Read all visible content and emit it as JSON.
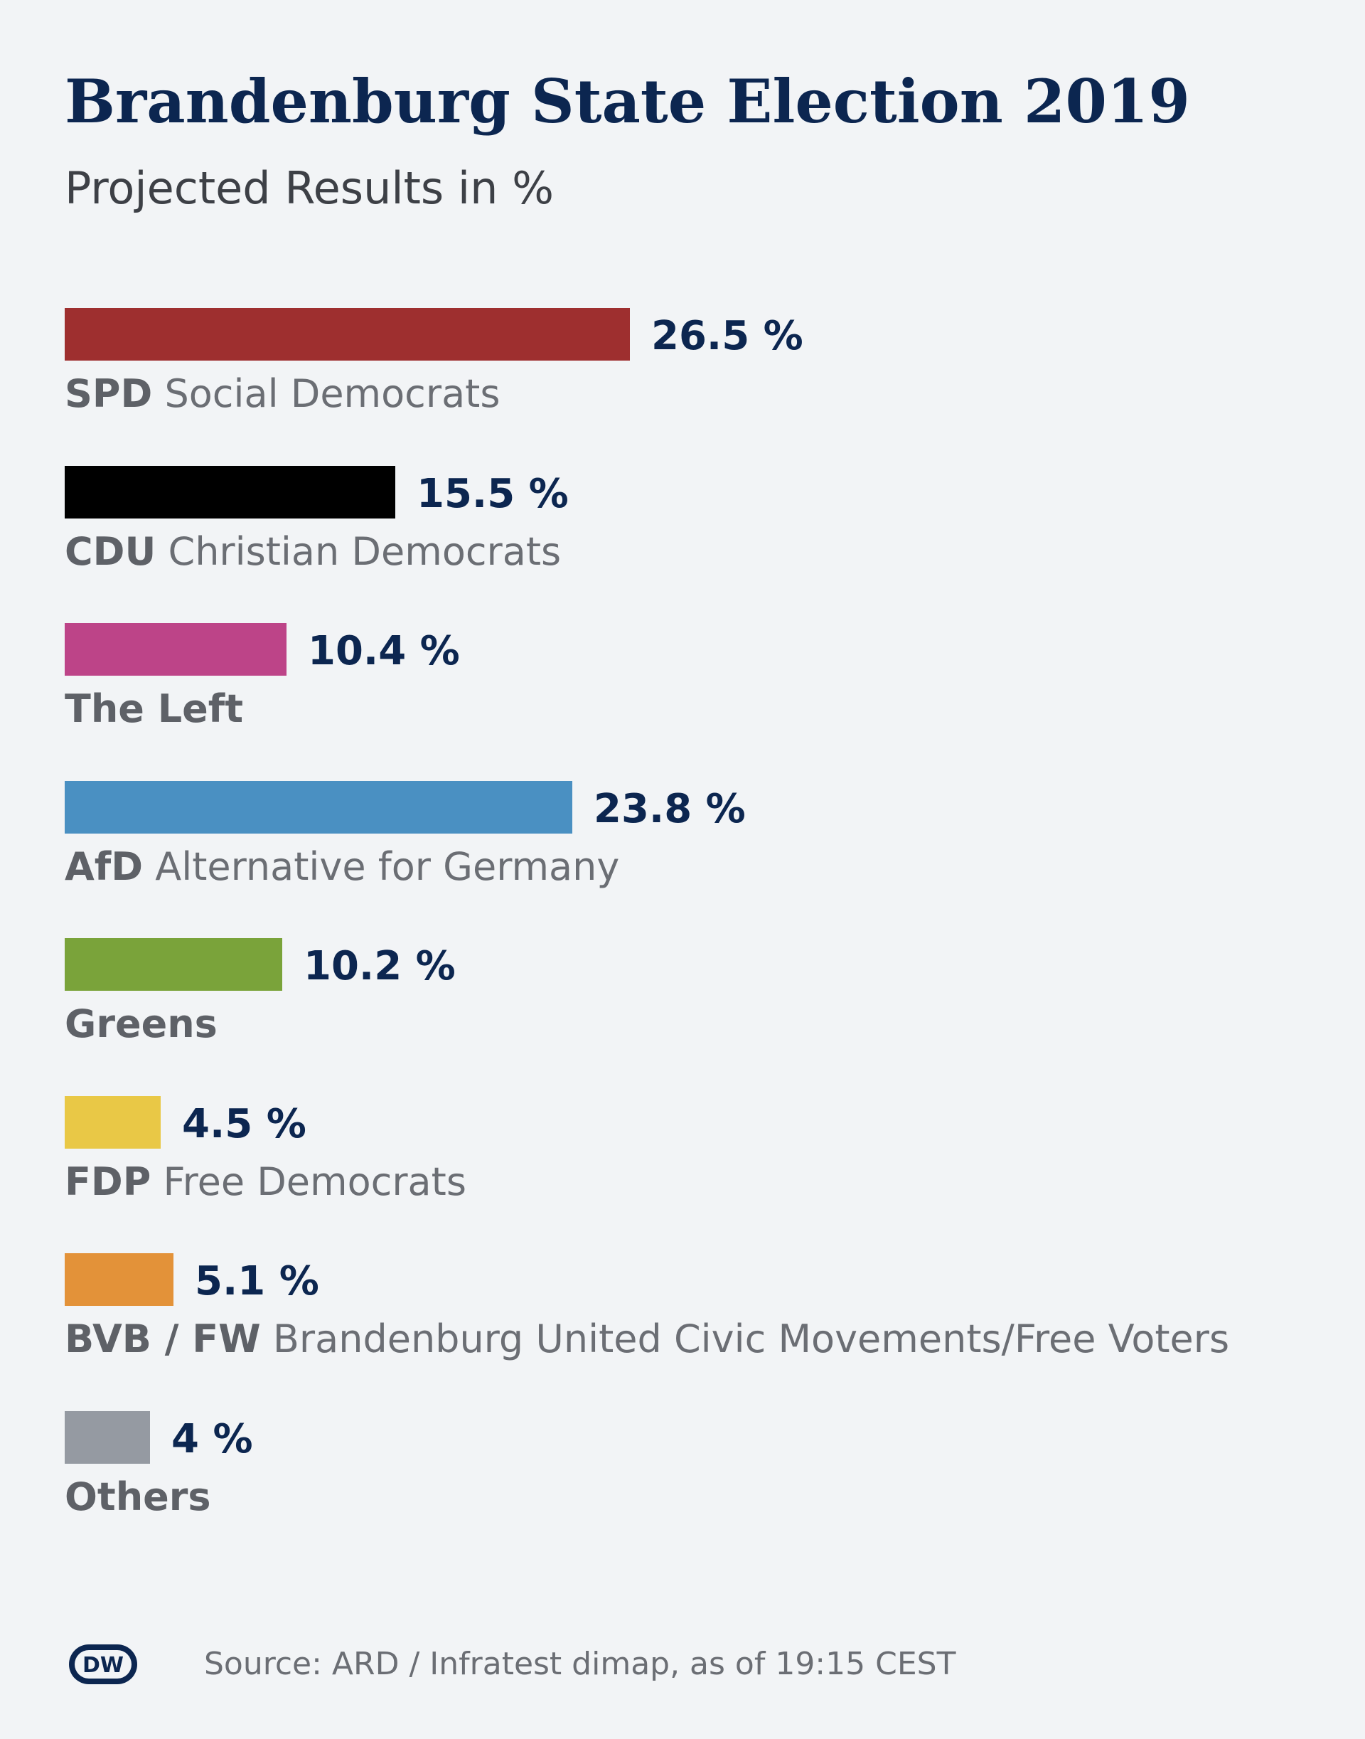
{
  "header": {
    "title": "Brandenburg State Election 2019",
    "subtitle": "Projected Results in %"
  },
  "chart_data": {
    "type": "bar",
    "orientation": "horizontal",
    "title": "Brandenburg State Election 2019",
    "subtitle": "Projected Results in %",
    "xlabel": "",
    "ylabel": "",
    "grid": false,
    "unit": "%",
    "bars": [
      {
        "abbr": "SPD",
        "name": "Social Democrats",
        "value": 26.5,
        "value_label": "26.5 %",
        "color": "#9e2f2f"
      },
      {
        "abbr": "CDU",
        "name": "Christian Democrats",
        "value": 15.5,
        "value_label": "15.5 %",
        "color": "#000000"
      },
      {
        "abbr": "",
        "name": "The Left",
        "value": 10.4,
        "value_label": "10.4 %",
        "color": "#bd4488"
      },
      {
        "abbr": "AfD",
        "name": "Alternative for Germany",
        "value": 23.8,
        "value_label": "23.8 %",
        "color": "#4a90c2"
      },
      {
        "abbr": "",
        "name": "Greens",
        "value": 10.2,
        "value_label": "10.2 %",
        "color": "#7aa33a"
      },
      {
        "abbr": "FDP",
        "name": "Free Democrats",
        "value": 4.5,
        "value_label": "4.5 %",
        "color": "#e9c846"
      },
      {
        "abbr": "BVB / FW",
        "name": "Brandenburg United Civic Movements/Free Voters",
        "value": 5.1,
        "value_label": "5.1 %",
        "color": "#e39239"
      },
      {
        "abbr": "",
        "name": "Others",
        "value": 4,
        "value_label": "4 %",
        "color": "#959aa2"
      }
    ]
  },
  "footer": {
    "logo_text": "DW",
    "source": "Source: ARD / Infratest dimap, as of 19:15 CEST"
  },
  "colors": {
    "background": "#f2f4f6",
    "title": "#0c2650",
    "value_text": "#0c2650",
    "label_text": "#6b6e74"
  }
}
